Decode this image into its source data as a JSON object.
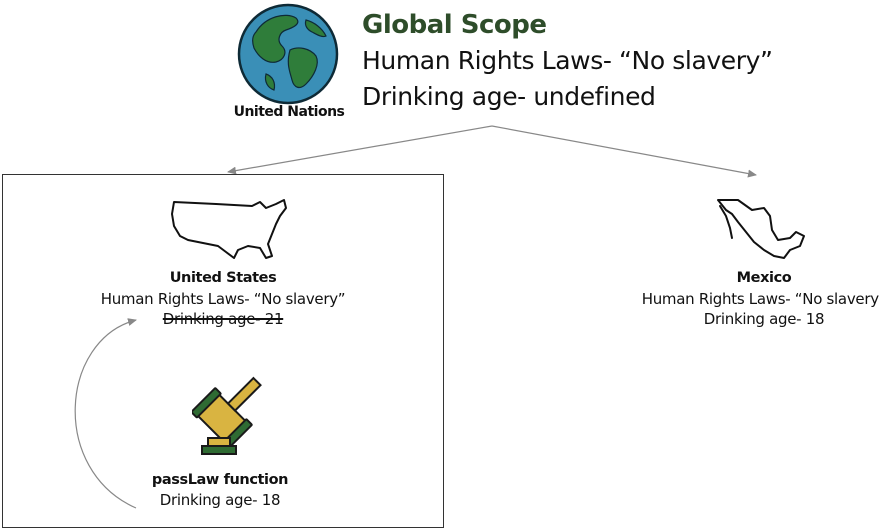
{
  "global": {
    "icon": "globe-icon",
    "org_label": "United Nations",
    "title": "Global Scope",
    "human_rights": "Human Rights Laws- “No slavery”",
    "drinking_age": "Drinking age- undefined"
  },
  "united_states": {
    "icon": "usa-map-icon",
    "name": "United States",
    "human_rights": "Human Rights Laws- “No slavery”",
    "drinking_age": "Drinking age- 21"
  },
  "mexico": {
    "icon": "mexico-map-icon",
    "name": "Mexico",
    "human_rights": "Human Rights Laws- “No slavery”",
    "drinking_age": "Drinking age- 18"
  },
  "pass_law": {
    "icon": "gavel-icon",
    "name": "passLaw function",
    "drinking_age": "Drinking age- 18"
  },
  "colors": {
    "title_green": "#2e4d2a",
    "globe_ocean": "#3a8fb7",
    "globe_land": "#2f7d3a",
    "map_fill": "#ffffff",
    "gavel_gold": "#d9b441",
    "gavel_green": "#2f6b33"
  }
}
